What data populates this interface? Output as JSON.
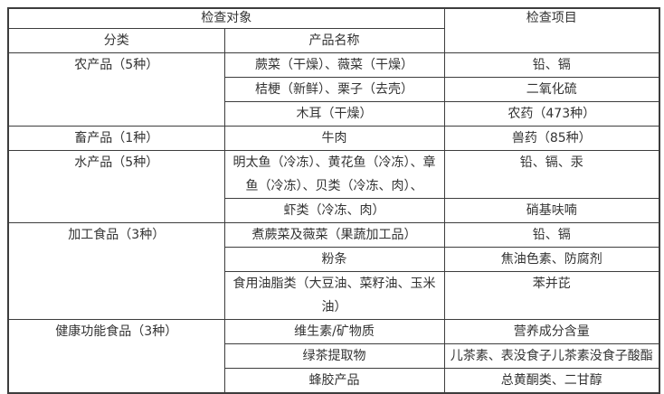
{
  "colors": {
    "border": "#3d3d3d",
    "text": "#333333",
    "background": "#ffffff"
  },
  "table": {
    "header": {
      "inspection_object": "检查对象",
      "category": "分类",
      "product_name": "产品名称",
      "inspection_items": "检查项目"
    },
    "groups": [
      {
        "category": "农产品（5种）",
        "rows": [
          {
            "product": "蕨菜（干燥）、薇菜（干燥）",
            "items": "铅、镉"
          },
          {
            "product": "桔梗（新鲜）、栗子（去壳）",
            "items": "二氧化硫"
          },
          {
            "product": "木耳（干燥）",
            "items": "农药（473种）"
          }
        ]
      },
      {
        "category": "畜产品（1种）",
        "rows": [
          {
            "product": "牛肉",
            "items": "兽药（85种）"
          }
        ]
      },
      {
        "category": "水产品（5种）",
        "rows": [
          {
            "product": "明太鱼（冷冻）、黄花鱼（冷冻）、章鱼（冷冻）、贝类（冷冻、肉）、",
            "items": "铅、镉、汞"
          },
          {
            "product": "虾类（冷冻、肉）",
            "items": "硝基呋喃"
          }
        ]
      },
      {
        "category": "加工食品（3种）",
        "rows": [
          {
            "product": "煮蕨菜及薇菜（果蔬加工品）",
            "items": "铅、镉"
          },
          {
            "product": "粉条",
            "items": "焦油色素、防腐剂"
          },
          {
            "product": "食用油脂类（大豆油、菜籽油、玉米油）",
            "items": "苯并芘"
          }
        ]
      },
      {
        "category": "健康功能食品（3种）",
        "rows": [
          {
            "product": "维生素/矿物质",
            "items": "营养成分含量"
          },
          {
            "product": "绿茶提取物",
            "items": "儿茶素、表没食子儿茶素没食子酸酯"
          },
          {
            "product": "蜂胶产品",
            "items": "总黄酮类、二甘醇"
          }
        ]
      }
    ]
  }
}
